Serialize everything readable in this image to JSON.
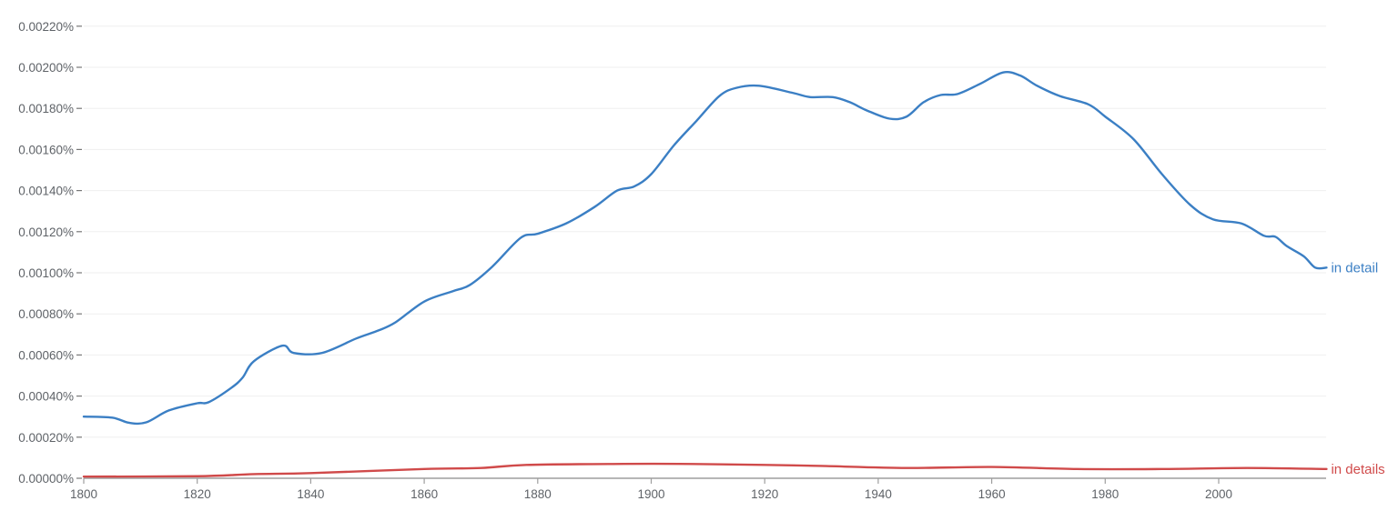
{
  "chart_data": {
    "type": "line",
    "title": "",
    "xlabel": "",
    "ylabel": "",
    "xlim": [
      1800,
      2019
    ],
    "ylim": [
      0,
      0.0022
    ],
    "grid": true,
    "legend_position": "inline-right",
    "x_ticks": [
      1800,
      1820,
      1840,
      1860,
      1880,
      1900,
      1920,
      1940,
      1960,
      1980,
      2000
    ],
    "x_tick_labels": [
      "1800",
      "1820",
      "1840",
      "1860",
      "1880",
      "1900",
      "1920",
      "1940",
      "1960",
      "1980",
      "2000"
    ],
    "y_ticks": [
      0,
      0.0002,
      0.0004,
      0.0006,
      0.0008,
      0.001,
      0.0012,
      0.0014,
      0.0016,
      0.0018,
      0.002,
      0.0022
    ],
    "y_tick_labels": [
      "0.00000%",
      "0.00020%",
      "0.00040%",
      "0.00060%",
      "0.00080%",
      "0.00100%",
      "0.00120%",
      "0.00140%",
      "0.00160%",
      "0.00180%",
      "0.00200%",
      "0.00220%"
    ],
    "series": [
      {
        "name": "in detail",
        "color": "#3b7fc4",
        "x": [
          1800,
          1805,
          1808,
          1811,
          1815,
          1820,
          1822,
          1826,
          1828,
          1830,
          1835,
          1837,
          1842,
          1848,
          1852,
          1855,
          1860,
          1865,
          1868,
          1872,
          1877,
          1880,
          1885,
          1890,
          1894,
          1897,
          1900,
          1904,
          1908,
          1912,
          1915,
          1919,
          1925,
          1928,
          1932,
          1935,
          1938,
          1942,
          1945,
          1948,
          1951,
          1954,
          1958,
          1962,
          1965,
          1968,
          1972,
          1977,
          1980,
          1985,
          1990,
          1995,
          1999,
          2004,
          2008,
          2010,
          2012,
          2015,
          2017,
          2019
        ],
        "values": [
          0.0003,
          0.000295,
          0.00027,
          0.000272,
          0.00033,
          0.000365,
          0.00037,
          0.00044,
          0.00049,
          0.00057,
          0.000645,
          0.00061,
          0.00061,
          0.00068,
          0.00072,
          0.00076,
          0.00086,
          0.00091,
          0.00094,
          0.00103,
          0.00117,
          0.00119,
          0.00124,
          0.00132,
          0.0014,
          0.00142,
          0.00148,
          0.00162,
          0.00174,
          0.00186,
          0.0019,
          0.00191,
          0.001875,
          0.001855,
          0.001855,
          0.00183,
          0.00179,
          0.00175,
          0.00176,
          0.00183,
          0.001865,
          0.00187,
          0.00192,
          0.001975,
          0.00196,
          0.00191,
          0.00186,
          0.00182,
          0.00176,
          0.00165,
          0.00148,
          0.00133,
          0.00126,
          0.00124,
          0.00118,
          0.001175,
          0.00113,
          0.00108,
          0.001025,
          0.001025
        ]
      },
      {
        "name": "in details",
        "color": "#d04a4a",
        "x": [
          1800,
          1820,
          1830,
          1840,
          1860,
          1870,
          1878,
          1895,
          1905,
          1920,
          1930,
          1945,
          1960,
          1975,
          1990,
          2005,
          2019
        ],
        "values": [
          8e-06,
          1e-05,
          2e-05,
          2.5e-05,
          4.5e-05,
          5e-05,
          6.5e-05,
          7e-05,
          7e-05,
          6.5e-05,
          6e-05,
          5e-05,
          5.5e-05,
          4.5e-05,
          4.5e-05,
          5e-05,
          4.5e-05
        ]
      }
    ]
  },
  "colors": {
    "grid": "#efefef",
    "axis": "#9e9e9e",
    "tick_text": "#5f6368"
  }
}
